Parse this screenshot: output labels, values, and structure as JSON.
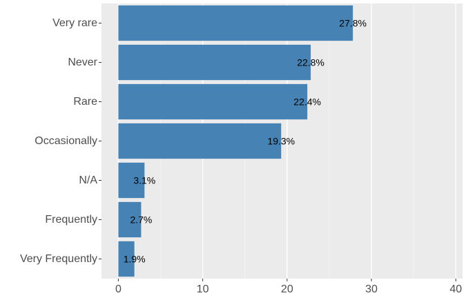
{
  "chart_data": {
    "type": "bar",
    "orientation": "horizontal",
    "categories": [
      "Very rare",
      "Never",
      "Rare",
      "Occasionally",
      "N/A",
      "Frequently",
      "Very Frequently"
    ],
    "values": [
      27.8,
      22.8,
      22.4,
      19.3,
      3.1,
      2.7,
      1.9
    ],
    "data_labels": [
      "27.8%",
      "22.8%",
      "22.4%",
      "19.3%",
      "3.1%",
      "2.7%",
      "1.9%"
    ],
    "x_ticks": [
      0,
      10,
      20,
      30,
      40
    ],
    "xlim": [
      -2,
      40.8
    ],
    "title": "",
    "xlabel": "",
    "ylabel": "",
    "grid": true,
    "legend": "none",
    "colors": {
      "bar": "#4682b4",
      "panel": "#ebebeb",
      "grid_major": "#ffffff",
      "grid_minor": "#f5f5f5"
    }
  }
}
